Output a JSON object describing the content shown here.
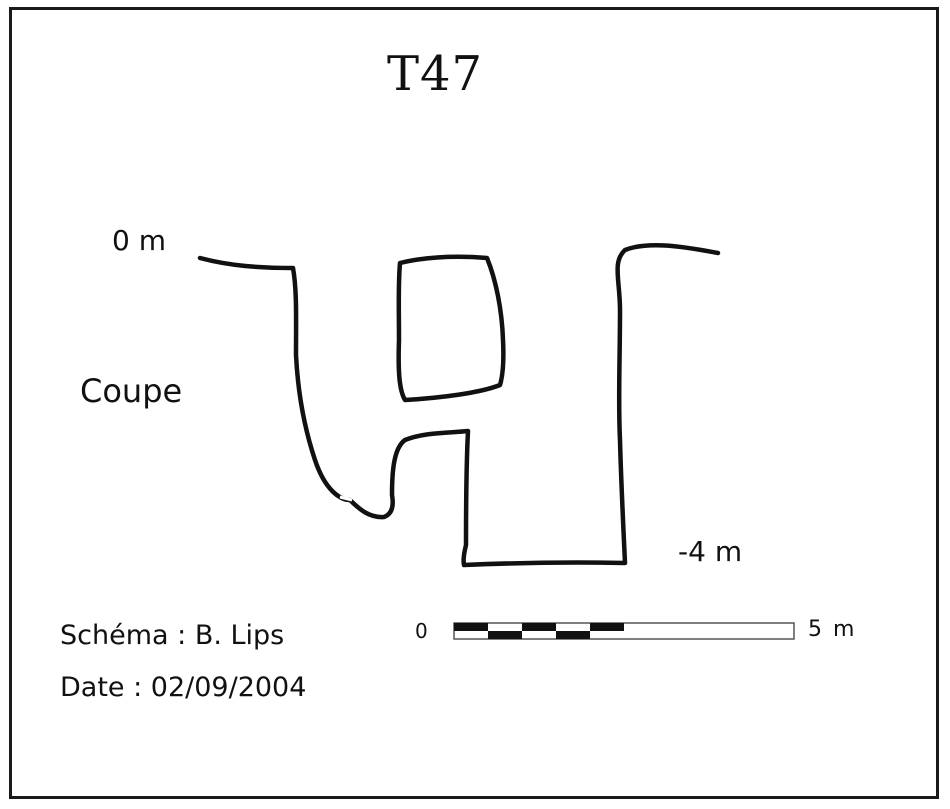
{
  "title": "T47",
  "labels": {
    "top_depth": "0 m",
    "bottom_depth": "-4 m",
    "view": "Coupe",
    "schema": "Schéma : B. Lips",
    "date": "Date : 02/09/2004"
  },
  "scale_bar": {
    "start_label": "0",
    "end_label": "5 m"
  },
  "colors": {
    "ink": "#111111",
    "background": "#ffffff"
  }
}
